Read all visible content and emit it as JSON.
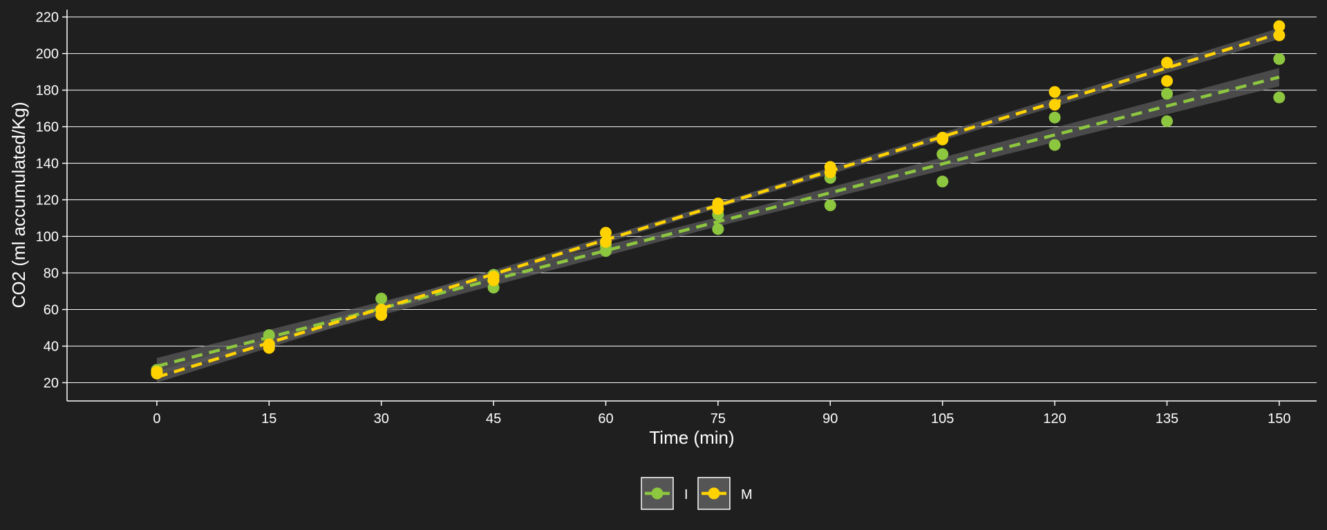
{
  "chart_data": {
    "type": "scatter",
    "xlabel": "Time (min)",
    "ylabel": "CO2 (ml accumulated/Kg)",
    "xlim": [
      -12,
      155
    ],
    "ylim": [
      10,
      224
    ],
    "x_ticks": [
      0,
      15,
      30,
      45,
      60,
      75,
      90,
      105,
      120,
      135,
      150
    ],
    "y_ticks": [
      20,
      40,
      60,
      80,
      100,
      120,
      140,
      160,
      180,
      200,
      220
    ],
    "grid": "horizontal",
    "legend_position": "bottom",
    "background_color": "#1f1f1f",
    "grid_color": "#ffffff",
    "band_color": "#5a5a5a",
    "series": [
      {
        "name": "I",
        "color": "#8dc63f",
        "points": [
          [
            0,
            26
          ],
          [
            0,
            27
          ],
          [
            15,
            46
          ],
          [
            15,
            41
          ],
          [
            30,
            66
          ],
          [
            30,
            60
          ],
          [
            45,
            79
          ],
          [
            45,
            72
          ],
          [
            60,
            95
          ],
          [
            60,
            92
          ],
          [
            75,
            112
          ],
          [
            75,
            104
          ],
          [
            90,
            132
          ],
          [
            90,
            117
          ],
          [
            105,
            145
          ],
          [
            105,
            130
          ],
          [
            120,
            165
          ],
          [
            120,
            150
          ],
          [
            135,
            178
          ],
          [
            135,
            163
          ],
          [
            150,
            197
          ],
          [
            150,
            176
          ]
        ],
        "fit": {
          "intercept": 29,
          "slope": 1.054
        },
        "band_halfwidth": [
          4.5,
          2.5,
          5
        ]
      },
      {
        "name": "M",
        "color": "#ffd200",
        "points": [
          [
            0,
            26
          ],
          [
            0,
            25
          ],
          [
            15,
            41
          ],
          [
            15,
            39
          ],
          [
            30,
            60
          ],
          [
            30,
            57
          ],
          [
            45,
            76
          ],
          [
            45,
            78
          ],
          [
            60,
            102
          ],
          [
            60,
            97
          ],
          [
            75,
            118
          ],
          [
            75,
            115
          ],
          [
            90,
            138
          ],
          [
            90,
            135
          ],
          [
            105,
            154
          ],
          [
            105,
            153
          ],
          [
            120,
            179
          ],
          [
            120,
            172
          ],
          [
            135,
            195
          ],
          [
            135,
            185
          ],
          [
            150,
            215
          ],
          [
            150,
            210
          ]
        ],
        "fit": {
          "intercept": 23,
          "slope": 1.253
        },
        "band_halfwidth": [
          3,
          1.5,
          3
        ]
      }
    ]
  }
}
